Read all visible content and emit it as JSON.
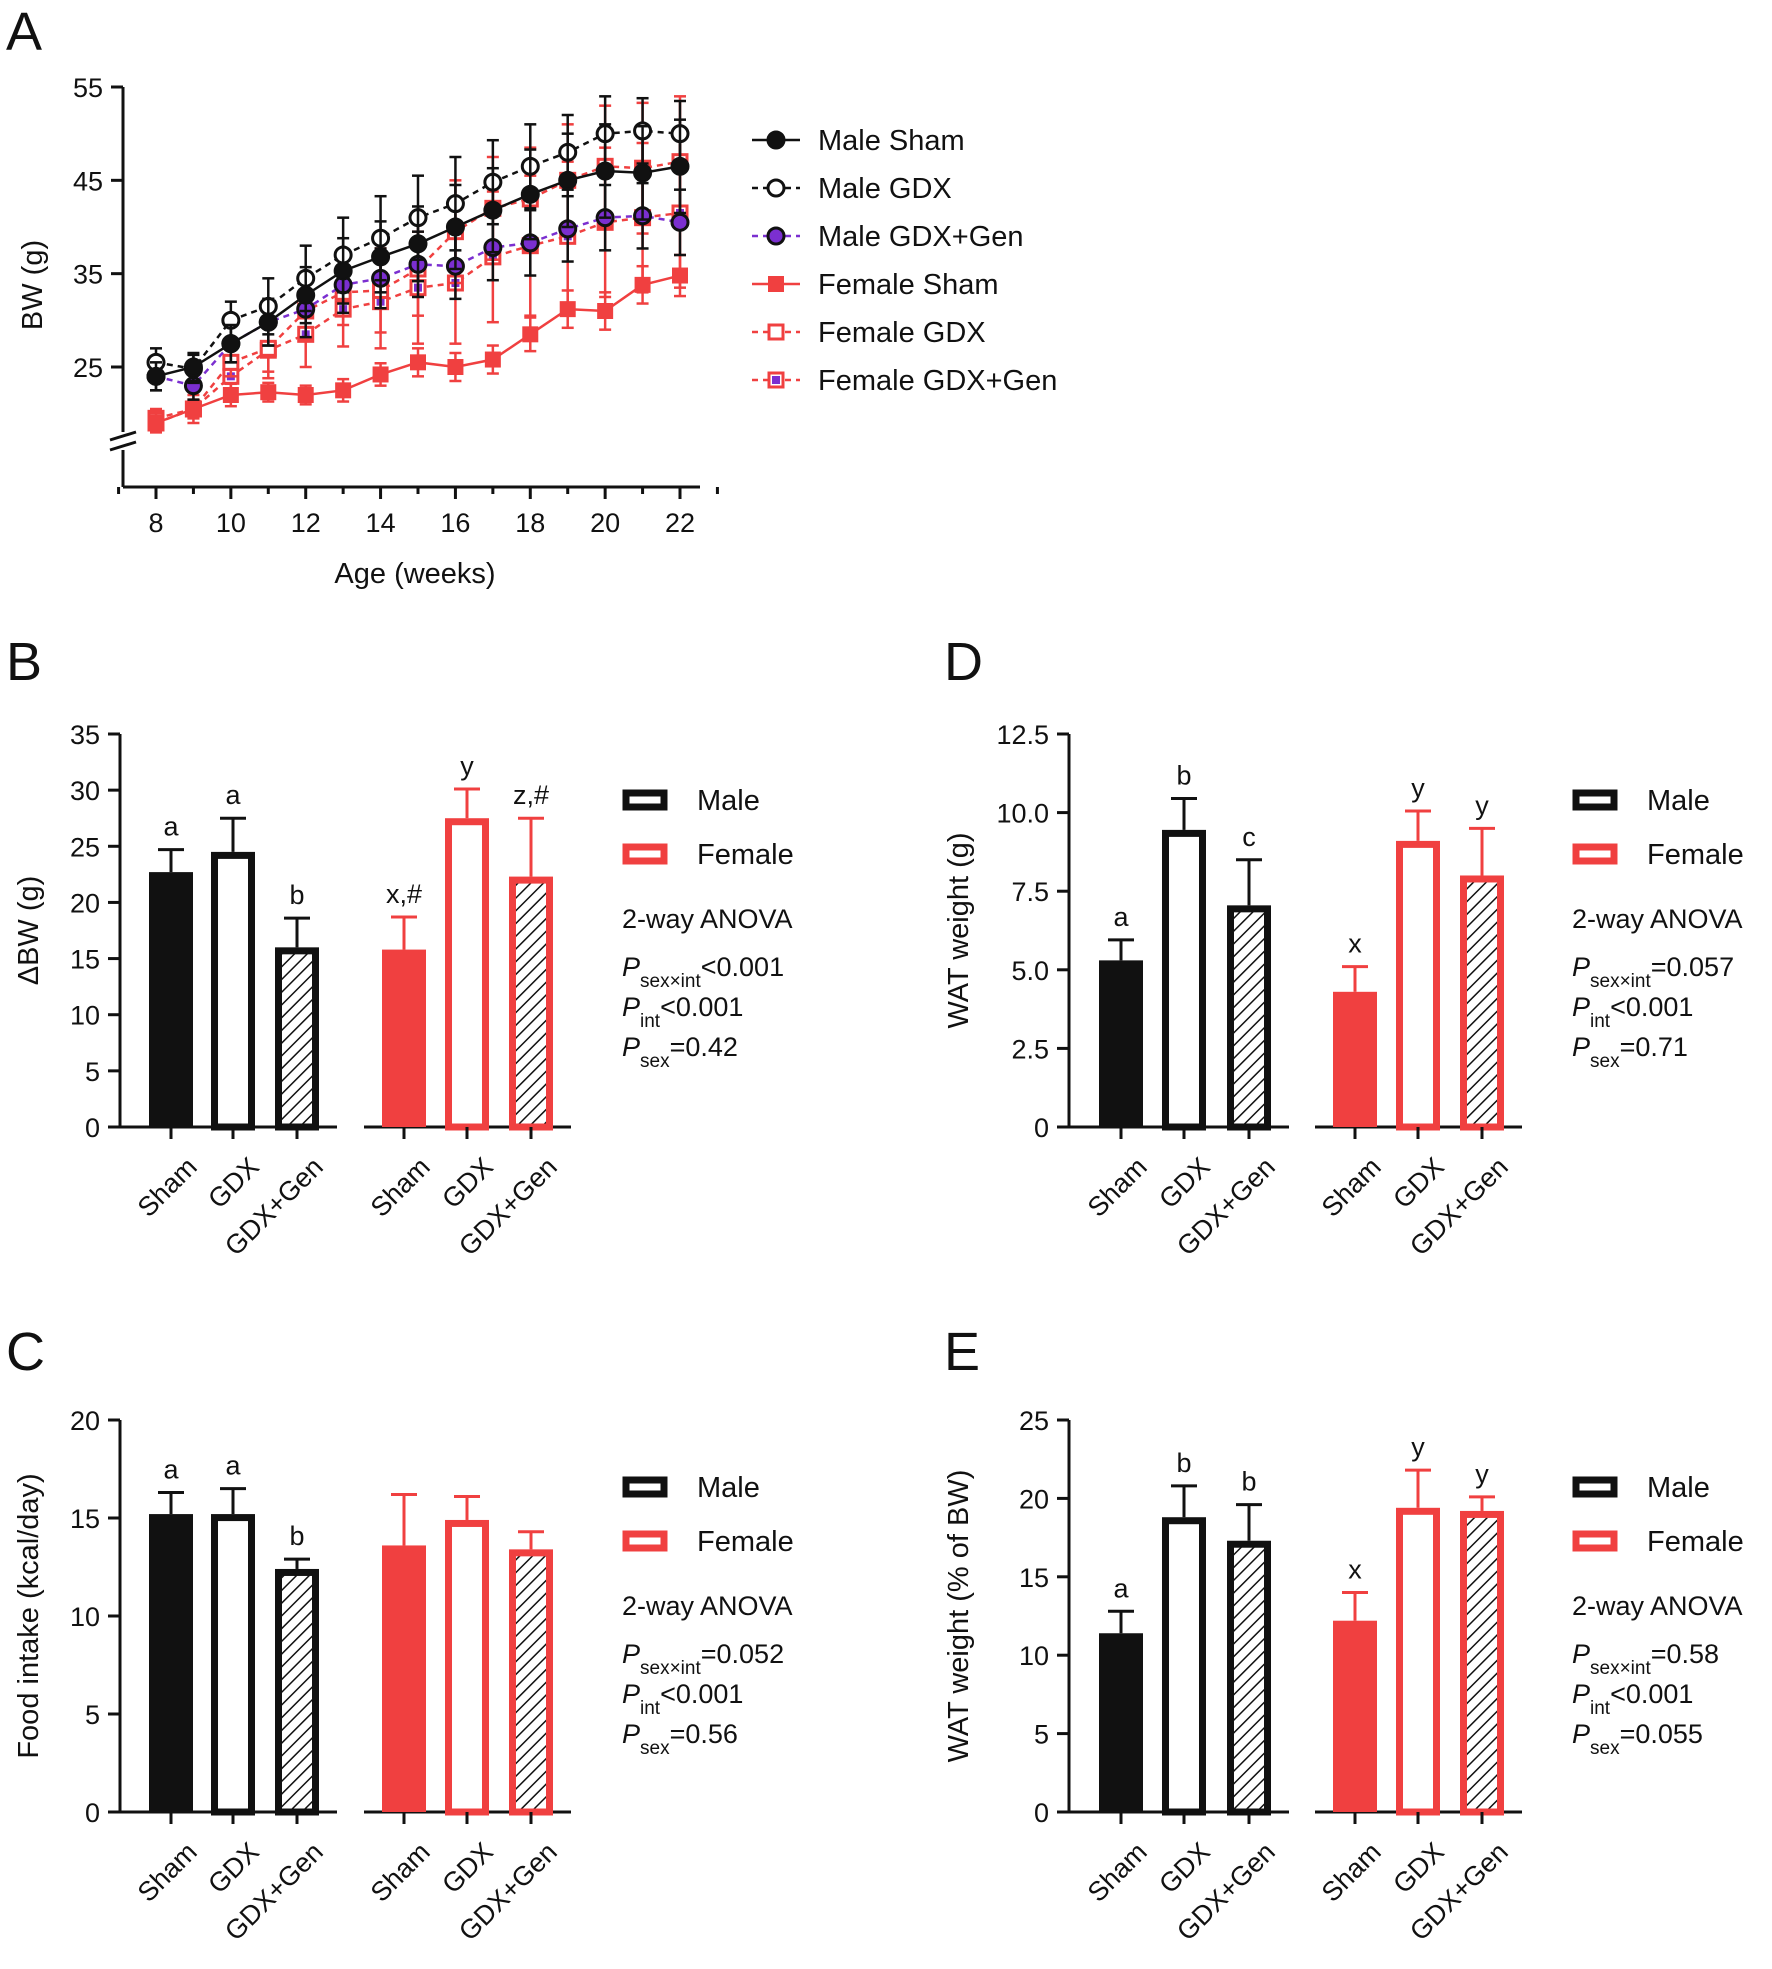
{
  "chart_data": [
    {
      "panel": "A",
      "type": "line",
      "xlabel": "Age (weeks)",
      "ylabel": "BW (g)",
      "xlim": [
        7,
        23
      ],
      "ylim": [
        15,
        55
      ],
      "xticks": [
        8,
        10,
        12,
        14,
        16,
        18,
        20,
        22
      ],
      "yticks": [
        25,
        35,
        45,
        55
      ],
      "x": [
        8,
        9,
        10,
        11,
        12,
        13,
        14,
        15,
        16,
        17,
        18,
        19,
        20,
        21,
        22
      ],
      "series": [
        {
          "name": "Male Sham",
          "marker": "circle-filled",
          "line": "solid",
          "color": "#111111",
          "values": [
            24.0,
            25.0,
            27.5,
            29.8,
            32.7,
            35.3,
            36.8,
            38.2,
            40.0,
            41.8,
            43.5,
            45.0,
            46.0,
            45.8,
            46.5
          ],
          "err": [
            1.5,
            1.5,
            2.0,
            2.5,
            3.0,
            3.5,
            3.8,
            4.0,
            4.5,
            4.5,
            4.8,
            5.0,
            5.0,
            5.0,
            5.0
          ]
        },
        {
          "name": "Male GDX",
          "marker": "circle-open",
          "line": "dashed",
          "color": "#111111",
          "values": [
            25.5,
            24.8,
            30.0,
            31.5,
            34.5,
            37.0,
            38.8,
            41.0,
            42.5,
            44.8,
            46.5,
            48.0,
            50.0,
            50.3,
            50.0
          ],
          "err": [
            1.5,
            1.5,
            2.0,
            3.0,
            3.5,
            4.0,
            4.5,
            4.5,
            5.0,
            4.5,
            4.5,
            4.0,
            4.0,
            3.5,
            3.5
          ]
        },
        {
          "name": "Male GDX+Gen",
          "marker": "circle-purple",
          "line": "dashed",
          "color": "#7b2fd0",
          "values": [
            24.0,
            23.0,
            27.5,
            29.8,
            31.2,
            33.8,
            34.5,
            36.0,
            35.8,
            37.8,
            38.3,
            39.8,
            41.0,
            41.2,
            40.5
          ],
          "err": [
            1.5,
            1.5,
            2.0,
            2.5,
            3.0,
            3.0,
            3.2,
            3.5,
            3.5,
            3.5,
            3.5,
            3.5,
            3.5,
            3.5,
            3.5
          ]
        },
        {
          "name": "Female Sham",
          "marker": "square-filled",
          "line": "solid",
          "color": "#f04040",
          "values": [
            19.0,
            20.5,
            22.0,
            22.3,
            22.0,
            22.5,
            24.2,
            25.5,
            25.0,
            25.8,
            28.5,
            31.2,
            31.0,
            33.8,
            34.8
          ],
          "err": [
            1.0,
            1.0,
            1.2,
            1.0,
            1.0,
            1.2,
            1.2,
            1.5,
            1.5,
            1.5,
            1.8,
            2.0,
            2.0,
            2.0,
            2.2
          ]
        },
        {
          "name": "Female GDX",
          "marker": "square-open",
          "line": "dashed",
          "color": "#f04040",
          "values": [
            19.5,
            20.5,
            25.5,
            27.0,
            31.0,
            33.0,
            33.2,
            35.5,
            39.5,
            42.0,
            43.0,
            45.0,
            46.5,
            46.3,
            47.0
          ],
          "err": [
            1.0,
            1.0,
            1.5,
            2.5,
            3.0,
            3.5,
            4.5,
            5.0,
            5.5,
            5.5,
            5.5,
            6.0,
            6.5,
            7.0,
            7.0
          ]
        },
        {
          "name": "Female GDX+Gen",
          "marker": "square-purple",
          "line": "dashed",
          "color": "#f04040",
          "values": [
            19.0,
            20.5,
            24.0,
            26.8,
            28.5,
            31.2,
            32.0,
            33.5,
            34.0,
            36.8,
            38.0,
            39.0,
            40.5,
            41.0,
            41.5
          ],
          "err": [
            1.0,
            1.5,
            2.0,
            3.0,
            3.5,
            4.0,
            5.0,
            6.0,
            6.5,
            7.0,
            7.5,
            8.0,
            8.0,
            8.0,
            8.0
          ]
        }
      ]
    },
    {
      "panel": "B",
      "type": "bar",
      "ylabel": "ΔBW (g)",
      "ylim": [
        0,
        35
      ],
      "yticks": [
        "0",
        "5",
        "10",
        "15",
        "20",
        "25",
        "30",
        "35"
      ],
      "categories": [
        "Sham",
        "GDX",
        "GDX+Gen",
        "Sham",
        "GDX",
        "GDX+Gen"
      ],
      "groups": [
        "Male",
        "Male",
        "Male",
        "Female",
        "Female",
        "Female"
      ],
      "styles": [
        "filled",
        "open",
        "hatched",
        "filled",
        "open",
        "hatched"
      ],
      "values": [
        22.7,
        24.5,
        16.0,
        15.8,
        27.5,
        22.3
      ],
      "err": [
        2.0,
        3.0,
        2.6,
        2.9,
        2.6,
        5.2
      ],
      "sig": [
        "a",
        "a",
        "b",
        "x,#",
        "y",
        "z,#"
      ],
      "legend": [
        "Male",
        "Female"
      ],
      "stats": {
        "title": "2-way ANOVA",
        "sexint": "<0.001",
        "int": "<0.001",
        "sex": "=0.42"
      }
    },
    {
      "panel": "C",
      "type": "bar",
      "ylabel": "Food intake (kcal/day)",
      "ylim": [
        0,
        20
      ],
      "yticks": [
        "0",
        "5",
        "10",
        "15",
        "20"
      ],
      "categories": [
        "Sham",
        "GDX",
        "GDX+Gen",
        "Sham",
        "GDX",
        "GDX+Gen"
      ],
      "groups": [
        "Male",
        "Male",
        "Male",
        "Female",
        "Female",
        "Female"
      ],
      "styles": [
        "filled",
        "open",
        "hatched",
        "filled",
        "open",
        "hatched"
      ],
      "values": [
        15.2,
        15.2,
        12.4,
        13.6,
        14.9,
        13.4
      ],
      "err": [
        1.1,
        1.3,
        0.5,
        2.6,
        1.2,
        0.9
      ],
      "sig": [
        "a",
        "a",
        "b",
        "",
        "",
        ""
      ],
      "legend": [
        "Male",
        "Female"
      ],
      "stats": {
        "title": "2-way ANOVA",
        "sexint": "=0.052",
        "int": "<0.001",
        "sex": "=0.56"
      }
    },
    {
      "panel": "D",
      "type": "bar",
      "ylabel": "WAT weight (g)",
      "ylim": [
        0,
        12.5
      ],
      "yticks": [
        "0",
        "2.5",
        "5.0",
        "7.5",
        "10.0",
        "12.5"
      ],
      "categories": [
        "Sham",
        "GDX",
        "GDX+Gen",
        "Sham",
        "GDX",
        "GDX+Gen"
      ],
      "groups": [
        "Male",
        "Male",
        "Male",
        "Female",
        "Female",
        "Female"
      ],
      "styles": [
        "filled",
        "open",
        "hatched",
        "filled",
        "open",
        "hatched"
      ],
      "values": [
        5.3,
        9.45,
        7.05,
        4.3,
        9.1,
        8.0
      ],
      "err": [
        0.65,
        1.0,
        1.45,
        0.8,
        0.95,
        1.5
      ],
      "sig": [
        "a",
        "b",
        "c",
        "x",
        "y",
        "y"
      ],
      "legend": [
        "Male",
        "Female"
      ],
      "stats": {
        "title": "2-way ANOVA",
        "sexint": "=0.057",
        "int": "<0.001",
        "sex": "=0.71"
      }
    },
    {
      "panel": "E",
      "type": "bar",
      "ylabel": "WAT weight (% of BW)",
      "ylim": [
        0,
        25
      ],
      "yticks": [
        "0",
        "5",
        "10",
        "15",
        "20",
        "25"
      ],
      "categories": [
        "Sham",
        "GDX",
        "GDX+Gen",
        "Sham",
        "GDX",
        "GDX+Gen"
      ],
      "groups": [
        "Male",
        "Male",
        "Male",
        "Female",
        "Female",
        "Female"
      ],
      "styles": [
        "filled",
        "open",
        "hatched",
        "filled",
        "open",
        "hatched"
      ],
      "values": [
        11.4,
        18.8,
        17.3,
        12.2,
        19.4,
        19.2
      ],
      "err": [
        1.4,
        2.0,
        2.3,
        1.8,
        2.4,
        0.9
      ],
      "sig": [
        "a",
        "b",
        "b",
        "x",
        "y",
        "y"
      ],
      "legend": [
        "Male",
        "Female"
      ],
      "stats": {
        "title": "2-way ANOVA",
        "sexint": "=0.58",
        "int": "<0.001",
        "sex": "=0.055"
      }
    }
  ],
  "colors": {
    "male": "#111111",
    "female": "#f04040",
    "gen": "#7b2fd0"
  }
}
